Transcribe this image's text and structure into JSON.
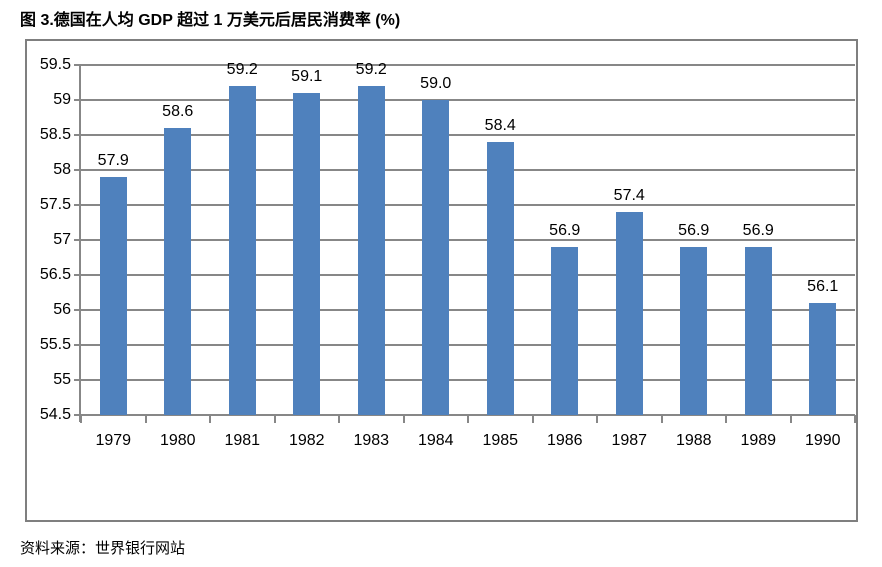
{
  "page": {
    "title": "图 3.德国在人均 GDP 超过 1 万美元后居民消费率 (%)",
    "source": "资料来源：世界银行网站"
  },
  "chart_data": {
    "type": "bar",
    "title": "图 3.德国在人均 GDP 超过 1 万美元后居民消费率 (%)",
    "categories": [
      "1979",
      "1980",
      "1981",
      "1982",
      "1983",
      "1984",
      "1985",
      "1986",
      "1987",
      "1988",
      "1989",
      "1990"
    ],
    "values": [
      57.9,
      58.6,
      59.2,
      59.1,
      59.2,
      59.0,
      58.4,
      56.9,
      57.4,
      56.9,
      56.9,
      56.1
    ],
    "value_labels": [
      "57.9",
      "58.6",
      "59.2",
      "59.1",
      "59.2",
      "59.0",
      "58.4",
      "56.9",
      "57.4",
      "56.9",
      "56.9",
      "56.1"
    ],
    "xlabel": "",
    "ylabel": "",
    "ylim": [
      54.5,
      59.5
    ],
    "ytick_step": 0.5,
    "ytick_labels": [
      "59.5",
      "59",
      "58.5",
      "58",
      "57.5",
      "57",
      "56.5",
      "56",
      "55.5",
      "55",
      "54.5"
    ],
    "grid": true,
    "legend": false,
    "bar_color": "#4f81bd",
    "gridline_color": "#878787",
    "source": "资料来源：世界银行网站"
  }
}
